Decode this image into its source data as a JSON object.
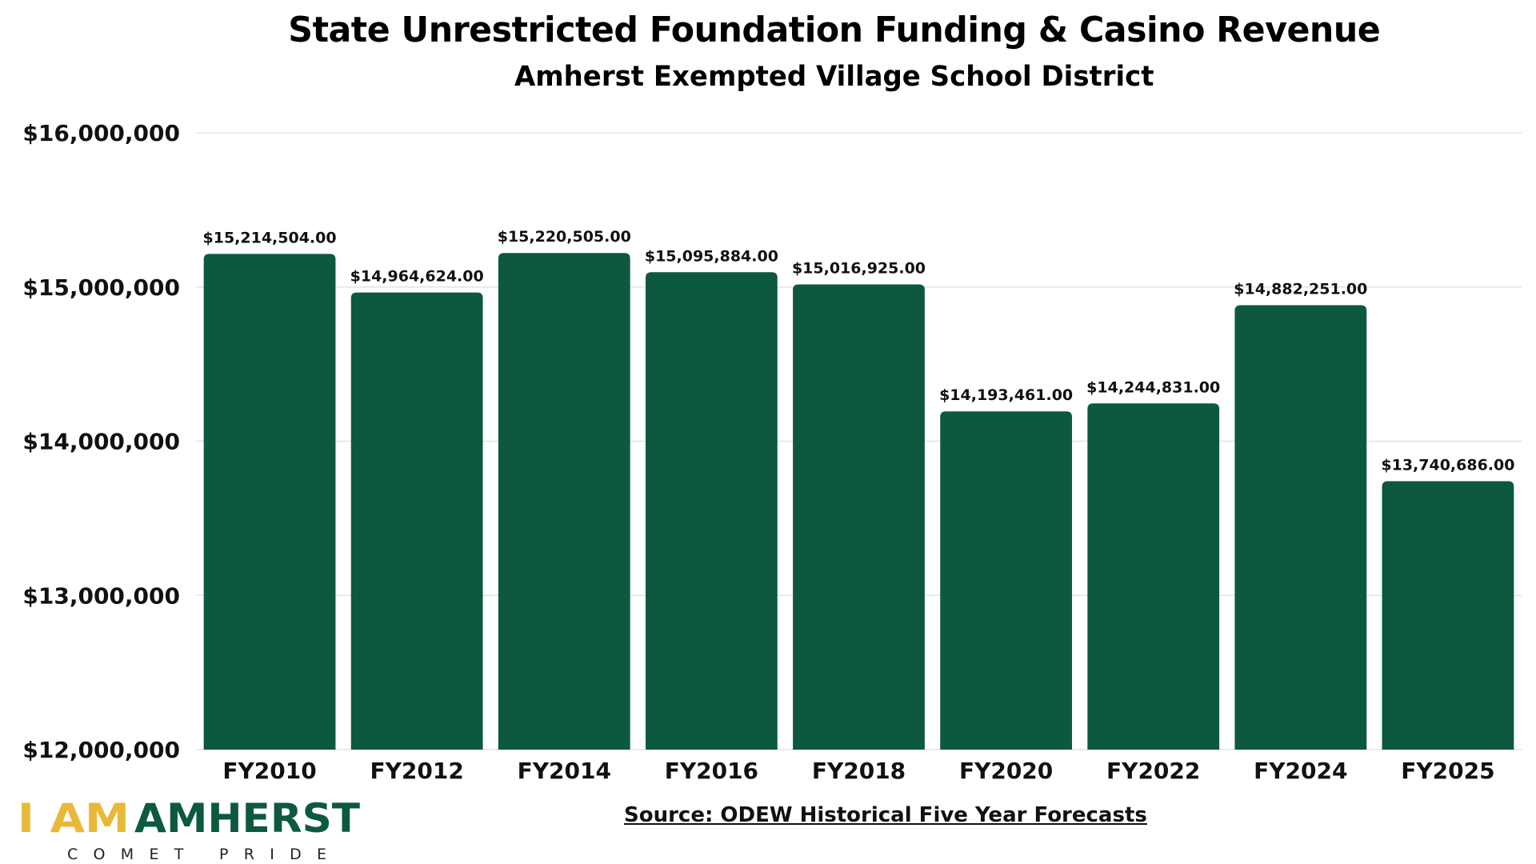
{
  "title": "State Unrestricted Foundation Funding & Casino Revenue",
  "subtitle": "Amherst Exempted Village School District",
  "source": "Source: ODEW Historical Five Year Forecasts",
  "logo": {
    "prefix": "I AM",
    "name": "AMHERST",
    "tagline": "COMET PRIDE",
    "colors": {
      "prefix": "#e8b838",
      "name": "#0d5841",
      "tagline": "#222222"
    }
  },
  "colors": {
    "bar": "#0d5841",
    "grid": "#e3e3e3"
  },
  "chart_data": {
    "type": "bar",
    "categories": [
      "FY2010",
      "FY2012",
      "FY2014",
      "FY2016",
      "FY2018",
      "FY2020",
      "FY2022",
      "FY2024",
      "FY2025"
    ],
    "values": [
      15214504.0,
      14964624.0,
      15220505.0,
      15095884.0,
      15016925.0,
      14193461.0,
      14244831.0,
      14882251.0,
      13740686.0
    ],
    "data_labels": [
      "$15,214,504.00",
      "$14,964,624.00",
      "$15,220,505.00",
      "$15,095,884.00",
      "$15,016,925.00",
      "$14,193,461.00",
      "$14,244,831.00",
      "$14,882,251.00",
      "$13,740,686.00"
    ],
    "ylim": [
      12000000,
      16000000
    ],
    "yticks": [
      12000000,
      13000000,
      14000000,
      15000000,
      16000000
    ],
    "ytick_labels": [
      "$12,000,000",
      "$13,000,000",
      "$14,000,000",
      "$15,000,000",
      "$16,000,000"
    ],
    "xlabel": "",
    "ylabel": "",
    "grid": true,
    "legend": false
  }
}
